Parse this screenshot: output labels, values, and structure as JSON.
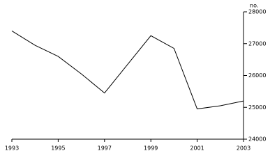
{
  "chart_data": {
    "type": "line",
    "y_unit": "no.",
    "x": [
      1993,
      1994,
      1995,
      1996,
      1997,
      1998,
      1999,
      2000,
      2001,
      2002,
      2003
    ],
    "series": [
      {
        "color": "#000000",
        "values": [
          27400,
          26950,
          26600,
          26050,
          25450,
          26350,
          27250,
          26850,
          24950,
          25050,
          25200
        ]
      }
    ],
    "xlim": [
      1993,
      2003
    ],
    "xticks": [
      1993,
      1995,
      1997,
      1999,
      2001,
      2003
    ],
    "ylim": [
      24000,
      28000
    ],
    "yticks": [
      24000,
      25000,
      26000,
      27000,
      28000
    ],
    "y_axis_side": "right",
    "grid": false
  }
}
